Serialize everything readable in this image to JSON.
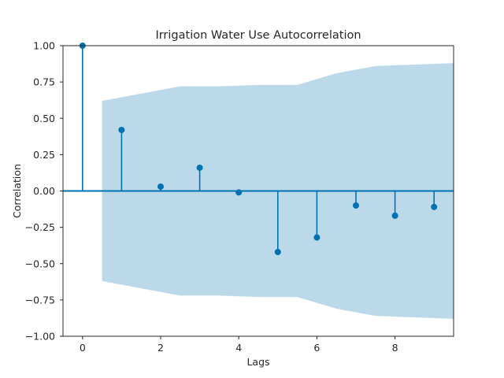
{
  "chart_data": {
    "type": "stem",
    "title": "Irrigation Water Use Autocorrelation",
    "xlabel": "Lags",
    "ylabel": "Correlation",
    "xlim": [
      -0.5,
      9.5
    ],
    "ylim": [
      -1.0,
      1.0
    ],
    "xticks": [
      0,
      2,
      4,
      6,
      8
    ],
    "xtick_labels": [
      "0",
      "2",
      "4",
      "6",
      "8"
    ],
    "yticks": [
      -1.0,
      -0.75,
      -0.5,
      -0.25,
      0.0,
      0.25,
      0.5,
      0.75,
      1.0
    ],
    "ytick_labels": [
      "−1.00",
      "−0.75",
      "−0.50",
      "−0.25",
      "0.00",
      "0.25",
      "0.50",
      "0.75",
      "1.00"
    ],
    "grid": false,
    "series": [
      {
        "x": [
          0,
          1,
          2,
          3,
          4,
          5,
          6,
          7,
          8,
          9
        ],
        "values": [
          1.0,
          0.42,
          0.03,
          0.16,
          -0.01,
          -0.42,
          -0.32,
          -0.1,
          -0.17,
          -0.11
        ]
      }
    ],
    "confidence_band": {
      "x": [
        0.5,
        1.5,
        2.5,
        3.5,
        4.5,
        5.5,
        6.5,
        7.5,
        8.5,
        9.5
      ],
      "upper": [
        0.62,
        0.67,
        0.72,
        0.72,
        0.73,
        0.73,
        0.81,
        0.86,
        0.87,
        0.88
      ],
      "lower": [
        -0.62,
        -0.67,
        -0.72,
        -0.72,
        -0.73,
        -0.73,
        -0.81,
        -0.86,
        -0.87,
        -0.88
      ]
    },
    "colors": {
      "stem": "#0072b2",
      "band": "#bcd9ea",
      "axis": "#262626",
      "text": "#262626"
    }
  }
}
